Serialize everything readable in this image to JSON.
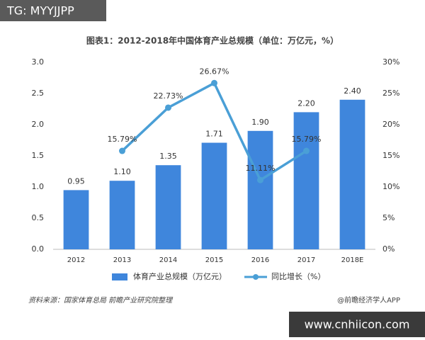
{
  "chart_data": {
    "type": "bar-line",
    "watermark": "TG: MYYJJPP",
    "title": "图表1：2012-2018年中国体育产业总规模（单位：万亿元，%）",
    "categories": [
      "2012",
      "2013",
      "2014",
      "2015",
      "2016",
      "2017",
      "2018E"
    ],
    "series": [
      {
        "name": "体育产业总规模（万亿元）",
        "type": "bar",
        "color": "#3f86dc",
        "values": [
          0.95,
          1.1,
          1.35,
          1.71,
          1.9,
          2.2,
          2.4
        ],
        "value_labels": [
          "0.95",
          "1.10",
          "1.35",
          "1.71",
          "1.90",
          "2.20",
          "2.40"
        ]
      },
      {
        "name": "同比增长（%）",
        "type": "line",
        "axis": "y2",
        "color": "#4a9fd6",
        "values": [
          null,
          15.79,
          22.73,
          26.67,
          11.11,
          15.79,
          null
        ],
        "value_labels": [
          null,
          "15.79%",
          "22.73%",
          "26.67%",
          "11.11%",
          "15.79%",
          null
        ]
      }
    ],
    "ylim": [
      0,
      3
    ],
    "yticks": [
      {
        "value": 0,
        "label": "0.0"
      },
      {
        "value": 0.5,
        "label": "0.5"
      },
      {
        "value": 1,
        "label": "1.0"
      },
      {
        "value": 1.5,
        "label": "1.5"
      },
      {
        "value": 2,
        "label": "2.0"
      },
      {
        "value": 2.5,
        "label": "2.5"
      },
      {
        "value": 3,
        "label": "3.0"
      }
    ],
    "y2lim": [
      0,
      30
    ],
    "y2ticks": [
      {
        "value": 0,
        "label": "0%"
      },
      {
        "value": 5,
        "label": "5%"
      },
      {
        "value": 10,
        "label": "10%"
      },
      {
        "value": 15,
        "label": "15%"
      },
      {
        "value": 20,
        "label": "20%"
      },
      {
        "value": 25,
        "label": "25%"
      },
      {
        "value": 30,
        "label": "30%"
      }
    ],
    "grid": false,
    "legend": "bottom",
    "source": "资料来源：国家体育总局 前瞻产业研究院整理",
    "credit": "@前瞻经济学人APP",
    "website": "www.cnhiicon.com"
  }
}
